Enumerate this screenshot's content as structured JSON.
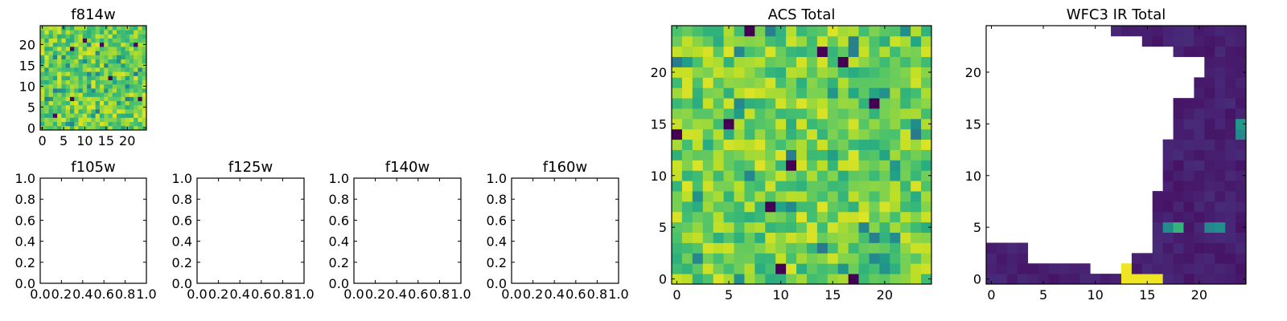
{
  "chart_data": [
    {
      "id": "f814w",
      "type": "heatmap",
      "title": "f814w",
      "xlim": [
        -0.5,
        24.5
      ],
      "ylim": [
        -0.5,
        24.5
      ],
      "xticks": [
        0,
        5,
        10,
        15,
        20
      ],
      "yticks": [
        0,
        5,
        10,
        15,
        20
      ],
      "colormap": "viridis",
      "vmin": 0,
      "vmax": 1,
      "grid": "25x25 noise field, values mostly 0.65-0.95, a few dark outlier pixels"
    },
    {
      "id": "f105w",
      "type": "heatmap",
      "title": "f105w",
      "xlim": [
        0,
        1
      ],
      "ylim": [
        0,
        1
      ],
      "xticks": [
        "0.0",
        "0.2",
        "0.4",
        "0.6",
        "0.8",
        "1.0"
      ],
      "yticks": [
        "0.0",
        "0.2",
        "0.4",
        "0.6",
        "0.8",
        "1.0"
      ],
      "empty": true
    },
    {
      "id": "f125w",
      "type": "heatmap",
      "title": "f125w",
      "xlim": [
        0,
        1
      ],
      "ylim": [
        0,
        1
      ],
      "xticks": [
        "0.0",
        "0.2",
        "0.4",
        "0.6",
        "0.8",
        "1.0"
      ],
      "yticks": [
        "0.0",
        "0.2",
        "0.4",
        "0.6",
        "0.8",
        "1.0"
      ],
      "empty": true
    },
    {
      "id": "f140w",
      "type": "heatmap",
      "title": "f140w",
      "xlim": [
        0,
        1
      ],
      "ylim": [
        0,
        1
      ],
      "xticks": [
        "0.0",
        "0.2",
        "0.4",
        "0.6",
        "0.8",
        "1.0"
      ],
      "yticks": [
        "0.0",
        "0.2",
        "0.4",
        "0.6",
        "0.8",
        "1.0"
      ],
      "empty": true
    },
    {
      "id": "f160w",
      "type": "heatmap",
      "title": "f160w",
      "xlim": [
        0,
        1
      ],
      "ylim": [
        0,
        1
      ],
      "xticks": [
        "0.0",
        "0.2",
        "0.4",
        "0.6",
        "0.8",
        "1.0"
      ],
      "yticks": [
        "0.0",
        "0.2",
        "0.4",
        "0.6",
        "0.8",
        "1.0"
      ],
      "empty": true
    },
    {
      "id": "acs-total",
      "type": "heatmap",
      "title": "ACS Total",
      "xlim": [
        -0.5,
        24.5
      ],
      "ylim": [
        -0.5,
        24.5
      ],
      "xticks": [
        0,
        5,
        10,
        15,
        20
      ],
      "yticks": [
        0,
        5,
        10,
        15,
        20
      ],
      "colormap": "viridis",
      "vmin": 0,
      "vmax": 1,
      "dark_pixels": [
        [
          7,
          24
        ],
        [
          14,
          22
        ],
        [
          16,
          21
        ],
        [
          19,
          17
        ],
        [
          5,
          15
        ],
        [
          0,
          14
        ],
        [
          11,
          11
        ],
        [
          9,
          7
        ],
        [
          10,
          1
        ],
        [
          17,
          0
        ]
      ]
    },
    {
      "id": "wfc3-ir-total",
      "type": "heatmap",
      "title": "WFC3 IR Total",
      "xlim": [
        -0.5,
        24.5
      ],
      "ylim": [
        -0.5,
        24.5
      ],
      "xticks": [
        0,
        5,
        10,
        15,
        20
      ],
      "yticks": [
        0,
        5,
        10,
        15,
        20
      ],
      "colormap": "viridis",
      "vmin": 0,
      "vmax": 1,
      "masked": "white NaN region in upper-left; data only along bottom rows and right edge",
      "bright_pixels": [
        [
          13,
          0
        ],
        [
          14,
          0
        ],
        [
          15,
          0
        ],
        [
          16,
          0
        ],
        [
          13,
          1
        ],
        [
          16,
          0
        ]
      ],
      "teal_pixels": [
        [
          17,
          5
        ],
        [
          18,
          5
        ],
        [
          21,
          5
        ],
        [
          22,
          5
        ],
        [
          24,
          14
        ],
        [
          24,
          15
        ]
      ]
    }
  ]
}
